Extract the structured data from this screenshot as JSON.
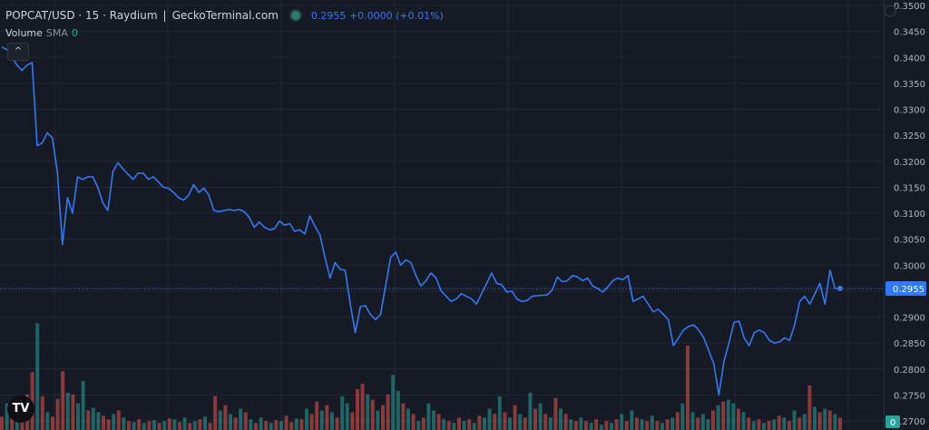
{
  "legend": {
    "symbol": "POPCAT/USD · 15 · Raydium",
    "separator": "|",
    "source": "GeckoTerminal.com",
    "price_info": "0.2955 +0.0000 (+0.01%)",
    "volume_label": "Volume",
    "sma_label": "SMA",
    "sma_value": "0"
  },
  "controls": {
    "collapse_glyph": "^",
    "logo_text": "TV"
  },
  "colors": {
    "background": "#161a25",
    "grid": "#232734",
    "line": "#3179f5",
    "up": "#26a69a",
    "down": "#ef5350",
    "axis_text": "#b2b5be"
  },
  "chart_data": {
    "type": "line",
    "title": "",
    "xlabel": "",
    "ylabel": "",
    "ylim": [
      0.27,
      0.35
    ],
    "y_ticks": [
      "0.3500",
      "0.3450",
      "0.3400",
      "0.3350",
      "0.3300",
      "0.3250",
      "0.3200",
      "0.3150",
      "0.3100",
      "0.3050",
      "0.3000",
      "0.2950",
      "0.2900",
      "0.2850",
      "0.2800",
      "0.2750",
      "0.2700"
    ],
    "last_price_label": "0.2955",
    "last_price": 0.2955,
    "volume_axis_label": "0",
    "grid": true,
    "series": [
      {
        "values": [
          0.342,
          0.3415,
          0.34,
          0.3385,
          0.3375,
          0.3385,
          0.339,
          0.323,
          0.3235,
          0.3255,
          0.3245,
          0.318,
          0.304,
          0.313,
          0.31,
          0.317,
          0.3165,
          0.317,
          0.317,
          0.315,
          0.312,
          0.3105,
          0.318,
          0.3197,
          0.3185,
          0.3175,
          0.3165,
          0.3177,
          0.3177,
          0.3165,
          0.317,
          0.316,
          0.315,
          0.3148,
          0.314,
          0.313,
          0.3125,
          0.3135,
          0.3155,
          0.314,
          0.3148,
          0.3135,
          0.3105,
          0.3103,
          0.3105,
          0.3107,
          0.3105,
          0.3107,
          0.3103,
          0.3092,
          0.3073,
          0.3083,
          0.3073,
          0.3068,
          0.307,
          0.3085,
          0.3077,
          0.308,
          0.3065,
          0.3068,
          0.306,
          0.3095,
          0.3075,
          0.3058,
          0.3015,
          0.2975,
          0.3005,
          0.2992,
          0.299,
          0.2925,
          0.287,
          0.292,
          0.2922,
          0.2905,
          0.2895,
          0.2905,
          0.296,
          0.3015,
          0.3025,
          0.3,
          0.301,
          0.3005,
          0.298,
          0.296,
          0.297,
          0.2985,
          0.2975,
          0.295,
          0.294,
          0.293,
          0.2935,
          0.2945,
          0.294,
          0.2935,
          0.2925,
          0.2945,
          0.2965,
          0.2985,
          0.2965,
          0.2962,
          0.2948,
          0.295,
          0.2935,
          0.293,
          0.2932,
          0.294,
          0.2941,
          0.2942,
          0.2943,
          0.2952,
          0.2977,
          0.2968,
          0.297,
          0.298,
          0.2977,
          0.297,
          0.2975,
          0.296,
          0.2955,
          0.2948,
          0.2958,
          0.297,
          0.2975,
          0.2972,
          0.298,
          0.293,
          0.2935,
          0.294,
          0.2925,
          0.291,
          0.2915,
          0.2905,
          0.2895,
          0.2845,
          0.286,
          0.2875,
          0.2882,
          0.2885,
          0.2875,
          0.286,
          0.2835,
          0.281,
          0.275,
          0.2815,
          0.285,
          0.289,
          0.2892,
          0.286,
          0.2845,
          0.287,
          0.2875,
          0.287,
          0.2855,
          0.285,
          0.2852,
          0.286,
          0.2855,
          0.2885,
          0.293,
          0.294,
          0.2925,
          0.2945,
          0.2965,
          0.2925,
          0.299,
          0.2955,
          0.2955
        ]
      }
    ],
    "volume": [
      {
        "v": 15,
        "up": false
      },
      {
        "v": 30,
        "up": true
      },
      {
        "v": 20,
        "up": false
      },
      {
        "v": 18,
        "up": true
      },
      {
        "v": 25,
        "up": false
      },
      {
        "v": 40,
        "up": false
      },
      {
        "v": 65,
        "up": false
      },
      {
        "v": 120,
        "up": true
      },
      {
        "v": 38,
        "up": false
      },
      {
        "v": 20,
        "up": true
      },
      {
        "v": 15,
        "up": false
      },
      {
        "v": 35,
        "up": false
      },
      {
        "v": 66,
        "up": false
      },
      {
        "v": 42,
        "up": true
      },
      {
        "v": 40,
        "up": false
      },
      {
        "v": 30,
        "up": true
      },
      {
        "v": 55,
        "up": true
      },
      {
        "v": 22,
        "up": false
      },
      {
        "v": 25,
        "up": true
      },
      {
        "v": 20,
        "up": true
      },
      {
        "v": 16,
        "up": false
      },
      {
        "v": 12,
        "up": false
      },
      {
        "v": 18,
        "up": true
      },
      {
        "v": 22,
        "up": false
      },
      {
        "v": 14,
        "up": true
      },
      {
        "v": 10,
        "up": false
      },
      {
        "v": 9,
        "up": true
      },
      {
        "v": 12,
        "up": false
      },
      {
        "v": 8,
        "up": true
      },
      {
        "v": 10,
        "up": false
      },
      {
        "v": 11,
        "up": true
      },
      {
        "v": 8,
        "up": false
      },
      {
        "v": 10,
        "up": true
      },
      {
        "v": 13,
        "up": false
      },
      {
        "v": 12,
        "up": true
      },
      {
        "v": 9,
        "up": false
      },
      {
        "v": 14,
        "up": true
      },
      {
        "v": 8,
        "up": false
      },
      {
        "v": 10,
        "up": true
      },
      {
        "v": 12,
        "up": false
      },
      {
        "v": 15,
        "up": true
      },
      {
        "v": 8,
        "up": false
      },
      {
        "v": 38,
        "up": false
      },
      {
        "v": 22,
        "up": true
      },
      {
        "v": 28,
        "up": false
      },
      {
        "v": 18,
        "up": true
      },
      {
        "v": 14,
        "up": false
      },
      {
        "v": 24,
        "up": true
      },
      {
        "v": 20,
        "up": false
      },
      {
        "v": 12,
        "up": true
      },
      {
        "v": 8,
        "up": false
      },
      {
        "v": 14,
        "up": true
      },
      {
        "v": 10,
        "up": false
      },
      {
        "v": 8,
        "up": true
      },
      {
        "v": 11,
        "up": false
      },
      {
        "v": 10,
        "up": true
      },
      {
        "v": 16,
        "up": false
      },
      {
        "v": 9,
        "up": false
      },
      {
        "v": 13,
        "up": true
      },
      {
        "v": 12,
        "up": false
      },
      {
        "v": 24,
        "up": true
      },
      {
        "v": 18,
        "up": false
      },
      {
        "v": 32,
        "up": false
      },
      {
        "v": 22,
        "up": true
      },
      {
        "v": 28,
        "up": false
      },
      {
        "v": 20,
        "up": true
      },
      {
        "v": 14,
        "up": false
      },
      {
        "v": 38,
        "up": true
      },
      {
        "v": 30,
        "up": true
      },
      {
        "v": 20,
        "up": false
      },
      {
        "v": 46,
        "up": false
      },
      {
        "v": 52,
        "up": false
      },
      {
        "v": 40,
        "up": true
      },
      {
        "v": 34,
        "up": false
      },
      {
        "v": 22,
        "up": true
      },
      {
        "v": 28,
        "up": false
      },
      {
        "v": 40,
        "up": false
      },
      {
        "v": 62,
        "up": true
      },
      {
        "v": 44,
        "up": true
      },
      {
        "v": 30,
        "up": false
      },
      {
        "v": 24,
        "up": true
      },
      {
        "v": 18,
        "up": false
      },
      {
        "v": 10,
        "up": true
      },
      {
        "v": 14,
        "up": false
      },
      {
        "v": 30,
        "up": true
      },
      {
        "v": 22,
        "up": true
      },
      {
        "v": 18,
        "up": false
      },
      {
        "v": 12,
        "up": true
      },
      {
        "v": 10,
        "up": false
      },
      {
        "v": 8,
        "up": true
      },
      {
        "v": 14,
        "up": false
      },
      {
        "v": 10,
        "up": true
      },
      {
        "v": 12,
        "up": false
      },
      {
        "v": 8,
        "up": true
      },
      {
        "v": 16,
        "up": false
      },
      {
        "v": 14,
        "up": true
      },
      {
        "v": 24,
        "up": true
      },
      {
        "v": 18,
        "up": false
      },
      {
        "v": 38,
        "up": true
      },
      {
        "v": 20,
        "up": false
      },
      {
        "v": 14,
        "up": true
      },
      {
        "v": 28,
        "up": false
      },
      {
        "v": 18,
        "up": true
      },
      {
        "v": 14,
        "up": false
      },
      {
        "v": 42,
        "up": true
      },
      {
        "v": 24,
        "up": false
      },
      {
        "v": 30,
        "up": true
      },
      {
        "v": 18,
        "up": false
      },
      {
        "v": 14,
        "up": true
      },
      {
        "v": 36,
        "up": false
      },
      {
        "v": 24,
        "up": true
      },
      {
        "v": 18,
        "up": false
      },
      {
        "v": 12,
        "up": true
      },
      {
        "v": 10,
        "up": false
      },
      {
        "v": 14,
        "up": true
      },
      {
        "v": 10,
        "up": false
      },
      {
        "v": 8,
        "up": true
      },
      {
        "v": 12,
        "up": false
      },
      {
        "v": 6,
        "up": true
      },
      {
        "v": 10,
        "up": false
      },
      {
        "v": 8,
        "up": true
      },
      {
        "v": 12,
        "up": false
      },
      {
        "v": 18,
        "up": true
      },
      {
        "v": 10,
        "up": false
      },
      {
        "v": 22,
        "up": true
      },
      {
        "v": 14,
        "up": false
      },
      {
        "v": 12,
        "up": true
      },
      {
        "v": 10,
        "up": false
      },
      {
        "v": 16,
        "up": true
      },
      {
        "v": 10,
        "up": false
      },
      {
        "v": 8,
        "up": true
      },
      {
        "v": 12,
        "up": false
      },
      {
        "v": 14,
        "up": true
      },
      {
        "v": 20,
        "up": false
      },
      {
        "v": 30,
        "up": true
      },
      {
        "v": 95,
        "up": false
      },
      {
        "v": 20,
        "up": true
      },
      {
        "v": 14,
        "up": false
      },
      {
        "v": 18,
        "up": true
      },
      {
        "v": 12,
        "up": true
      },
      {
        "v": 22,
        "up": false
      },
      {
        "v": 28,
        "up": true
      },
      {
        "v": 32,
        "up": false
      },
      {
        "v": 34,
        "up": true
      },
      {
        "v": 30,
        "up": true
      },
      {
        "v": 24,
        "up": false
      },
      {
        "v": 20,
        "up": true
      },
      {
        "v": 14,
        "up": false
      },
      {
        "v": 10,
        "up": true
      },
      {
        "v": 12,
        "up": false
      },
      {
        "v": 8,
        "up": true
      },
      {
        "v": 10,
        "up": false
      },
      {
        "v": 12,
        "up": true
      },
      {
        "v": 16,
        "up": false
      },
      {
        "v": 14,
        "up": true
      },
      {
        "v": 10,
        "up": false
      },
      {
        "v": 22,
        "up": true
      },
      {
        "v": 14,
        "up": false
      },
      {
        "v": 18,
        "up": true
      },
      {
        "v": 50,
        "up": false
      },
      {
        "v": 26,
        "up": true
      },
      {
        "v": 20,
        "up": false
      },
      {
        "v": 24,
        "up": true
      },
      {
        "v": 22,
        "up": false
      },
      {
        "v": 18,
        "up": true
      },
      {
        "v": 14,
        "up": false
      }
    ]
  }
}
